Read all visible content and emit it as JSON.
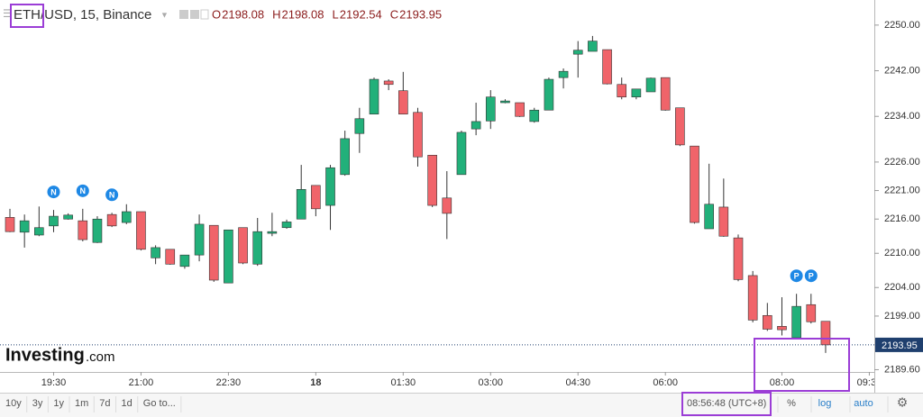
{
  "chart_data": {
    "type": "candlestick",
    "title": "ETH/USD, 15, Binance",
    "ohlc_labels": [
      "O",
      "H",
      "L",
      "C"
    ],
    "logo": {
      "name": "Investing",
      "suffix": ".com"
    },
    "categories": [
      null,
      null,
      null,
      "19:30",
      null,
      null,
      null,
      null,
      null,
      "21:00",
      null,
      null,
      null,
      null,
      null,
      "22:30",
      null,
      null,
      null,
      null,
      null,
      "18",
      null,
      null,
      null,
      null,
      null,
      "01:30",
      null,
      null,
      null,
      null,
      null,
      "03:00",
      null,
      null,
      null,
      null,
      null,
      "04:30",
      null,
      null,
      null,
      null,
      null,
      "06:00",
      null,
      null,
      null,
      null,
      null,
      null,
      null,
      "08:00",
      null,
      null,
      null,
      null,
      null,
      "09:30"
    ],
    "events": [
      null,
      null,
      null,
      "N",
      null,
      "N",
      null,
      "N",
      null,
      null,
      null,
      null,
      null,
      null,
      null,
      null,
      null,
      null,
      null,
      null,
      null,
      null,
      null,
      null,
      null,
      null,
      null,
      null,
      null,
      null,
      null,
      null,
      null,
      null,
      null,
      null,
      null,
      null,
      null,
      null,
      null,
      null,
      null,
      null,
      null,
      null,
      null,
      null,
      null,
      null,
      null,
      null,
      null,
      null,
      "P",
      "P",
      null,
      null,
      null,
      null
    ],
    "open": [
      2216.3,
      2213.7,
      2213.2,
      2214.8,
      2216.0,
      2215.7,
      2211.9,
      2216.8,
      2215.4,
      2217.3,
      2209.2,
      2210.7,
      2207.7,
      2209.7,
      2214.9,
      2204.8,
      2214.5,
      2208.1,
      2213.5,
      2214.5,
      2216.0,
      2221.9,
      2218.4,
      2223.8,
      2231.0,
      2234.4,
      2240.2,
      2238.5,
      2234.7,
      2227.2,
      2219.7,
      2223.8,
      2231.8,
      2233.2,
      2236.4,
      2236.4,
      2233.1,
      2235.1,
      2240.8,
      2244.9,
      2245.4,
      2245.7,
      2239.6,
      2237.4,
      2238.3,
      2240.8,
      2235.5,
      2228.8,
      2214.3,
      2218.1,
      2212.7,
      2206.1,
      2199.1,
      2197.2,
      2195.2,
      2201.0,
      2198.08,
      null,
      null,
      null
    ],
    "high": [
      2217.8,
      2216.8,
      2218.2,
      2217.6,
      2217.0,
      2217.8,
      2216.5,
      2217.1,
      2218.6,
      2217.3,
      2211.4,
      2210.7,
      2209.7,
      2216.8,
      2214.9,
      2214.1,
      2214.5,
      2216.2,
      2217.1,
      2215.9,
      2225.5,
      2221.9,
      2225.5,
      2231.5,
      2235.5,
      2240.8,
      2240.5,
      2241.8,
      2235.5,
      2227.2,
      2224.4,
      2231.5,
      2236.4,
      2238.6,
      2237.0,
      2236.4,
      2235.5,
      2240.8,
      2242.4,
      2247.2,
      2248.1,
      2245.7,
      2240.8,
      2238.8,
      2240.8,
      2240.8,
      2235.5,
      2228.8,
      2225.7,
      2223.1,
      2213.3,
      2206.9,
      2201.3,
      2202.3,
      2202.9,
      2202.9,
      2198.08,
      null,
      null,
      null
    ],
    "low": [
      2213.7,
      2211.0,
      2213.0,
      2213.7,
      2215.9,
      2212.1,
      2211.8,
      2214.6,
      2215.1,
      2210.5,
      2208.1,
      2208.0,
      2207.3,
      2208.6,
      2205.0,
      2204.8,
      2208.1,
      2207.8,
      2213.0,
      2214.3,
      2216.0,
      2216.5,
      2214.1,
      2223.6,
      2227.6,
      2234.4,
      2238.6,
      2234.4,
      2225.2,
      2218.1,
      2212.5,
      2223.8,
      2230.7,
      2231.8,
      2236.3,
      2233.9,
      2232.9,
      2235.1,
      2238.9,
      2240.8,
      2245.4,
      2239.6,
      2237.0,
      2237.0,
      2238.3,
      2235.0,
      2228.8,
      2215.2,
      2214.3,
      2212.9,
      2205.1,
      2197.9,
      2196.4,
      2195.6,
      2195.2,
      2197.7,
      2192.54,
      null,
      null,
      null
    ],
    "close": [
      2213.8,
      2215.7,
      2214.5,
      2216.5,
      2216.7,
      2212.4,
      2216.0,
      2214.8,
      2217.3,
      2210.7,
      2211.0,
      2208.1,
      2209.7,
      2215.1,
      2205.3,
      2214.1,
      2208.3,
      2213.8,
      2213.8,
      2215.5,
      2221.2,
      2217.8,
      2225.0,
      2230.1,
      2233.6,
      2240.5,
      2239.6,
      2234.4,
      2226.9,
      2218.4,
      2217.0,
      2231.2,
      2233.1,
      2237.4,
      2236.7,
      2234.0,
      2235.1,
      2240.5,
      2241.9,
      2245.6,
      2247.2,
      2239.7,
      2237.4,
      2238.8,
      2240.7,
      2235.1,
      2229.0,
      2215.4,
      2218.6,
      2213.0,
      2205.4,
      2198.3,
      2196.7,
      2196.6,
      2200.7,
      2198.0,
      2193.95,
      null,
      null,
      null
    ],
    "up_color": "#22b07a",
    "down_color": "#f0646a",
    "header_color": "#8b1c1c",
    "last_price_color": "#1f3f6e",
    "ylim": [
      2189.2,
      2254.4
    ],
    "yticks": [
      {
        "value": 2250,
        "label": "2250.00"
      },
      {
        "value": 2242,
        "label": "2242.00"
      },
      {
        "value": 2234,
        "label": "2234.00"
      },
      {
        "value": 2226,
        "label": "2226.00"
      },
      {
        "value": 2221,
        "label": "2221.00"
      },
      {
        "value": 2216,
        "label": "2216.00"
      },
      {
        "value": 2210,
        "label": "2210.00"
      },
      {
        "value": 2204,
        "label": "2204.00"
      },
      {
        "value": 2199,
        "label": "2199.00"
      },
      {
        "value": 2189.6,
        "label": "2189.60"
      }
    ],
    "log_scale": false,
    "toolbar": {
      "ranges": [
        "10y",
        "3y",
        "1y",
        "1m",
        "7d",
        "1d",
        "Go to..."
      ],
      "clock": "08:56:48 (UTC+8)",
      "options": [
        "%",
        "log",
        "auto"
      ]
    }
  }
}
